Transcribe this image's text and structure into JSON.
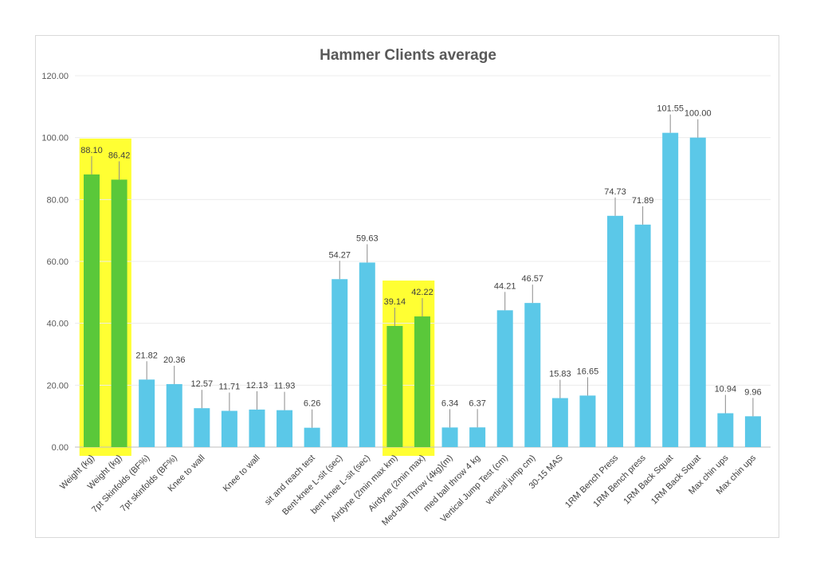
{
  "chart_data": {
    "type": "bar",
    "title": "Hammer Clients average",
    "xlabel": "",
    "ylabel": "",
    "ylim": [
      0,
      120
    ],
    "yticks": [
      "0.00",
      "20.00",
      "40.00",
      "60.00",
      "80.00",
      "100.00",
      "120.00"
    ],
    "grid": true,
    "legend": "none",
    "categories": [
      "Weight (kg)",
      "Weight (kg)",
      "7pt Skinfolds (BF%)",
      "7pt skinfolds (BF%)",
      "Knee to wall",
      "",
      "Knee to wall",
      "",
      "sit and reach test",
      "Bent-knee L-sit (sec)",
      "bent knee L-sit  (sec)",
      "Airdyne (2min max km)",
      "Airdyne (2min max)",
      "Med-ball Throw (4kg)(m)",
      "med ball throw 4 kg",
      "Vertical Jump Test (cm)",
      "vertical jump cm)",
      "30-15 MAS",
      "",
      "1RM Bench Press",
      "1RM Bench press",
      "1RM Back Squat",
      "1RM Back Squat",
      "Max chin ups",
      "Max chin ups"
    ],
    "values": [
      88.1,
      86.42,
      21.82,
      20.36,
      12.57,
      11.71,
      12.13,
      11.93,
      6.26,
      54.27,
      59.63,
      39.14,
      42.22,
      6.34,
      6.37,
      44.21,
      46.57,
      15.83,
      16.65,
      74.73,
      71.89,
      101.55,
      100.0,
      10.94,
      9.96
    ],
    "value_labels": [
      "88.10",
      "86.42",
      "21.82",
      "20.36",
      "12.57",
      "11.71",
      "12.13",
      "11.93",
      "6.26",
      "54.27",
      "59.63",
      "39.14",
      "42.22",
      "6.34",
      "6.37",
      "44.21",
      "46.57",
      "15.83",
      "16.65",
      "74.73",
      "71.89",
      "101.55",
      "100.00",
      "10.94",
      "9.96"
    ],
    "bar_colors": [
      "#5ac83a",
      "#5ac83a",
      "#5bc8e8",
      "#5bc8e8",
      "#5bc8e8",
      "#5bc8e8",
      "#5bc8e8",
      "#5bc8e8",
      "#5bc8e8",
      "#5bc8e8",
      "#5bc8e8",
      "#5ac83a",
      "#5ac83a",
      "#5bc8e8",
      "#5bc8e8",
      "#5bc8e8",
      "#5bc8e8",
      "#5bc8e8",
      "#5bc8e8",
      "#5bc8e8",
      "#5bc8e8",
      "#5bc8e8",
      "#5bc8e8",
      "#5bc8e8",
      "#5bc8e8"
    ],
    "highlight_groups": [
      {
        "from_index": 0,
        "to_index": 1,
        "color": "#ffff33"
      },
      {
        "from_index": 11,
        "to_index": 12,
        "color": "#ffff33"
      }
    ]
  }
}
